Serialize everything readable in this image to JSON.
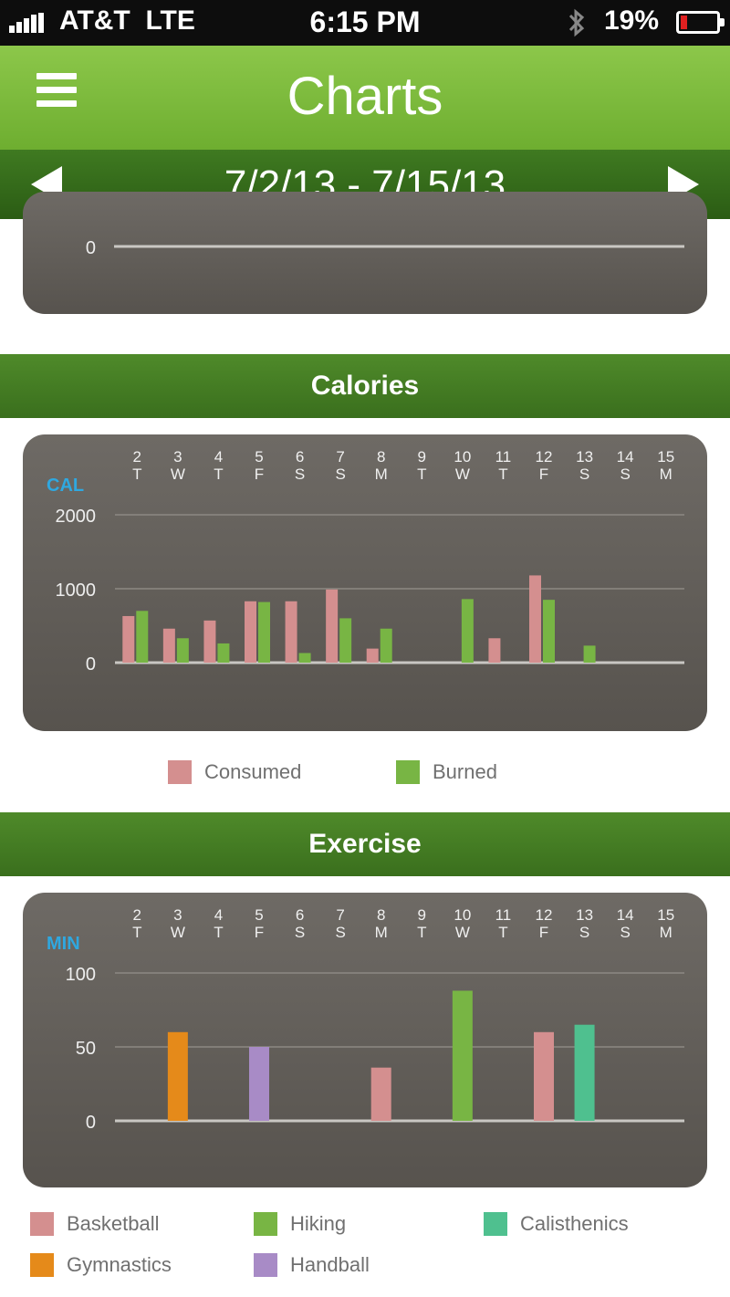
{
  "status_bar": {
    "carrier": "AT&T",
    "network": "LTE",
    "time": "6:15 PM",
    "battery_percent": "19%",
    "battery_level": 0.19
  },
  "header": {
    "title": "Charts",
    "menu_icon": "hamburger-menu-icon"
  },
  "date_nav": {
    "range": "7/2/13 - 7/15/13",
    "prev_icon": "left-arrow-icon",
    "next_icon": "right-arrow-icon"
  },
  "colors": {
    "accent_green": "#7cbc3c",
    "dark_green": "#3a6f1d",
    "chart_bg": "#625e59",
    "unit_label": "#2fa8e0",
    "consumed": "#d48f8f",
    "burned": "#78b544",
    "basketball": "#d48f8f",
    "hiking": "#78b544",
    "calisthenics": "#4fc08f",
    "gymnastics": "#e58a1a",
    "handball": "#a88bc6"
  },
  "sections": {
    "calories": "Calories",
    "exercise": "Exercise"
  },
  "chart_data": [
    {
      "type": "line",
      "partially_visible": true,
      "y_tick_labels": [
        "0"
      ]
    },
    {
      "type": "bar",
      "unit_label": "CAL",
      "days": [
        "2",
        "3",
        "4",
        "5",
        "6",
        "7",
        "8",
        "9",
        "10",
        "11",
        "12",
        "13",
        "14",
        "15"
      ],
      "weekdays": [
        "T",
        "W",
        "T",
        "F",
        "S",
        "S",
        "M",
        "T",
        "W",
        "T",
        "F",
        "S",
        "S",
        "M"
      ],
      "ylim": [
        0,
        2000
      ],
      "y_ticks": [
        0,
        1000,
        2000
      ],
      "y_tick_labels": [
        "0",
        "1000",
        "2000"
      ],
      "legend": "bottom",
      "series": [
        {
          "name": "Consumed",
          "color": "#d48f8f",
          "values": [
            630,
            460,
            570,
            830,
            830,
            990,
            190,
            0,
            0,
            330,
            1180,
            0,
            0,
            0
          ]
        },
        {
          "name": "Burned",
          "color": "#78b544",
          "values": [
            700,
            330,
            260,
            820,
            130,
            600,
            460,
            0,
            860,
            0,
            850,
            230,
            0,
            0
          ]
        }
      ]
    },
    {
      "type": "bar",
      "unit_label": "MIN",
      "days": [
        "2",
        "3",
        "4",
        "5",
        "6",
        "7",
        "8",
        "9",
        "10",
        "11",
        "12",
        "13",
        "14",
        "15"
      ],
      "weekdays": [
        "T",
        "W",
        "T",
        "F",
        "S",
        "S",
        "M",
        "T",
        "W",
        "T",
        "F",
        "S",
        "S",
        "M"
      ],
      "ylim": [
        0,
        100
      ],
      "y_ticks": [
        0,
        50,
        100
      ],
      "y_tick_labels": [
        "0",
        "50",
        "100"
      ],
      "legend": "bottom",
      "series": [
        {
          "name": "Basketball",
          "color": "#d48f8f",
          "values": [
            0,
            0,
            0,
            0,
            0,
            0,
            36,
            0,
            0,
            0,
            60,
            0,
            0,
            0
          ]
        },
        {
          "name": "Hiking",
          "color": "#78b544",
          "values": [
            0,
            0,
            0,
            0,
            0,
            0,
            0,
            0,
            88,
            0,
            0,
            0,
            0,
            0
          ]
        },
        {
          "name": "Calisthenics",
          "color": "#4fc08f",
          "values": [
            0,
            0,
            0,
            0,
            0,
            0,
            0,
            0,
            0,
            0,
            0,
            65,
            0,
            0
          ]
        },
        {
          "name": "Gymnastics",
          "color": "#e58a1a",
          "values": [
            0,
            60,
            0,
            0,
            0,
            0,
            0,
            0,
            0,
            0,
            0,
            0,
            0,
            0
          ]
        },
        {
          "name": "Handball",
          "color": "#a88bc6",
          "values": [
            0,
            0,
            0,
            50,
            0,
            0,
            0,
            0,
            0,
            0,
            0,
            0,
            0,
            0
          ]
        }
      ]
    }
  ]
}
